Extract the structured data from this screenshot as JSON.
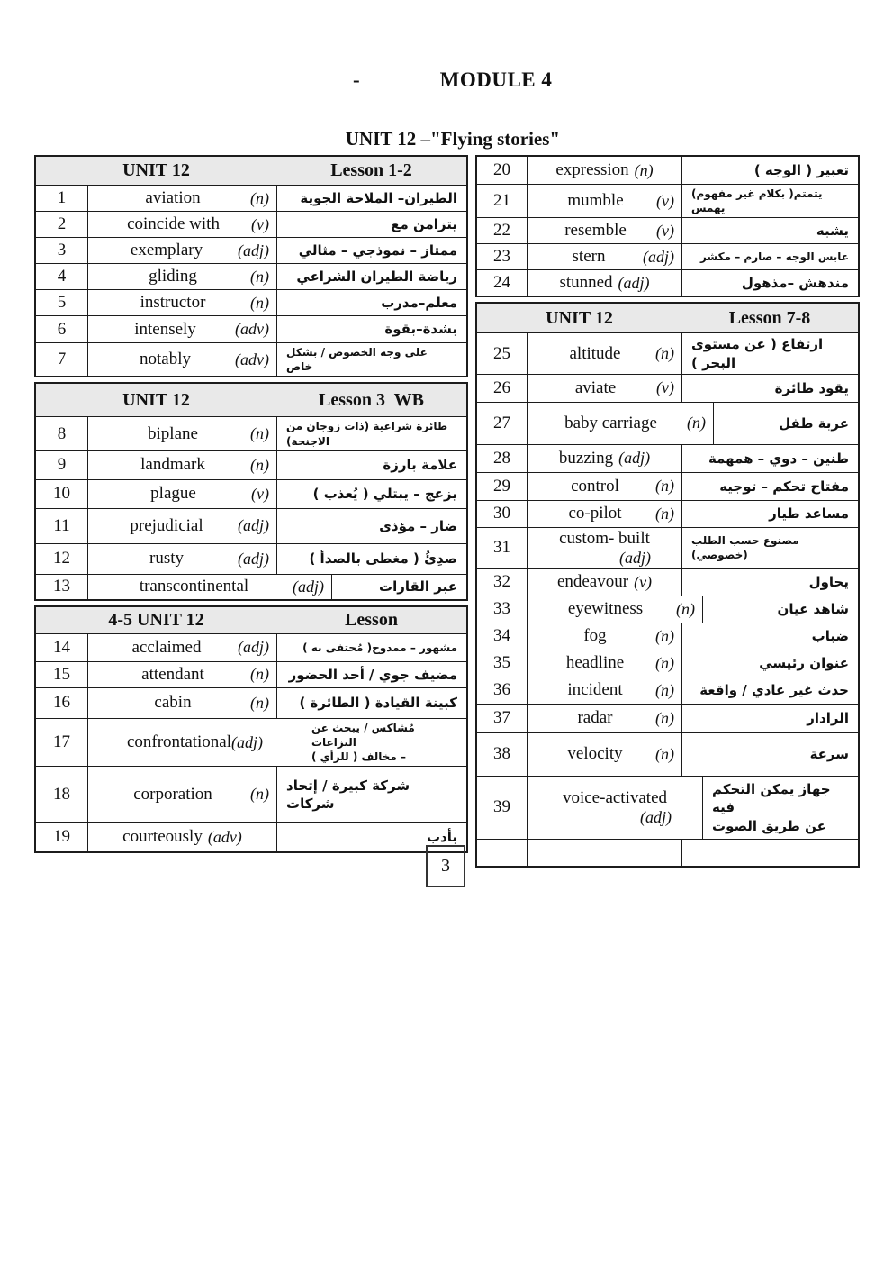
{
  "header": {
    "dash": "-",
    "module_title": "MODULE 4",
    "unit_title": "UNIT 12 –\"Flying stories\""
  },
  "footer": {
    "page_number": "3"
  },
  "left_table": {
    "sections": [
      {
        "unit": "UNIT 12",
        "lesson": "Lesson 1-2",
        "rows": [
          {
            "num": "1",
            "word": "aviation",
            "pos": "(n)",
            "ar": "الطيران– الملاحة الجوية"
          },
          {
            "num": "2",
            "word": "coincide with",
            "pos": "(v)",
            "ar": "يتزامن مع"
          },
          {
            "num": "3",
            "word": "exemplary",
            "pos": "(adj)",
            "ar": "ممتاز – نموذجي – مثالي"
          },
          {
            "num": "4",
            "word": "gliding",
            "pos": "(n)",
            "ar": "رياضة الطيران الشراعي"
          },
          {
            "num": "5",
            "word": "instructor",
            "pos": "(n)",
            "ar": "معلم–مدرب"
          },
          {
            "num": "6",
            "word": "intensely",
            "pos": "(adv)",
            "ar": "بشدة–بقوة"
          },
          {
            "num": "7",
            "word": "notably",
            "pos": "(adv)",
            "ar": "على وجه الخصوص / بشكل خاص",
            "ar_small": true
          }
        ]
      },
      {
        "unit": "UNIT 12",
        "lesson": "Lesson 3  WB",
        "rows": [
          {
            "num": "8",
            "word": "biplane",
            "pos": "(n)",
            "ar": "طائرة شراعية (ذات زوجان من الاجنحة)",
            "ar_small": true
          },
          {
            "num": "9",
            "word": "landmark",
            "pos": "(n)",
            "ar": "علامة بارزة"
          },
          {
            "num": "10",
            "word": "plague",
            "pos": "(v)",
            "ar": "يزعج – يبتلي ( يُعذب )"
          },
          {
            "num": "11",
            "word": "prejudicial",
            "pos": "(adj)",
            "ar": "ضار –  مؤذى"
          },
          {
            "num": "12",
            "word": "rusty",
            "pos": "(adj)",
            "ar": "صدِئُ ( مغطى بالصدأ )"
          },
          {
            "num": "13",
            "word": "transcontinental",
            "pos": "(adj)",
            "ar": "عبر القارات",
            "word_w": 271
          }
        ]
      },
      {
        "unit": "4-5 UNIT 12",
        "lesson": "Lesson",
        "rows": [
          {
            "num": "14",
            "word": "acclaimed",
            "pos": "(adj)",
            "ar": "مشهور – ممدوح( مُحتفى به )",
            "ar_small": true
          },
          {
            "num": "15",
            "word": "attendant",
            "pos": "(n)",
            "ar": "مضيف جوي / أحد الحضور"
          },
          {
            "num": "16",
            "word": "cabin",
            "pos": "(n)",
            "ar": "كبينة القيادة ( الطائرة )"
          },
          {
            "num": "17",
            "word": "confrontational",
            "pos": "(adj)",
            "ar": "مُشاكس / يبحث عن النزاعات\n– مخالف ( للرأي )",
            "ar_small": true,
            "word_w": 238,
            "pos_inline": true,
            "pos_gap": 0
          },
          {
            "num": "18",
            "word": "corporation",
            "pos": "(n)",
            "ar": "شركة كبيرة / إتحاد شركات"
          },
          {
            "num": "19",
            "word": "courteously",
            "pos": "(adv)",
            "ar": "بأدب",
            "ar_align": "right",
            "pos_inline": true
          }
        ]
      }
    ]
  },
  "right_table": {
    "sections": [
      {
        "rows": [
          {
            "num": "20",
            "word": "expression",
            "pos": "(n)",
            "ar": "تعبير ( الوجه )",
            "pos_inline": true
          },
          {
            "num": "21",
            "word": "mumble",
            "pos": "(v)",
            "ar": "يتمتم( بكلام غير مفهوم) يهمس",
            "ar_small": true
          },
          {
            "num": "22",
            "word": "resemble",
            "pos": "(v)",
            "ar": "يشبه"
          },
          {
            "num": "23",
            "word": "stern",
            "pos": "(adj)",
            "ar": "عابس الوجه – صارم – مكشر",
            "ar_small": true
          },
          {
            "num": "24",
            "word": "stunned",
            "pos": "(adj)",
            "ar": "مندهش –مذهول",
            "pos_inline": true
          }
        ]
      },
      {
        "unit": "UNIT 12",
        "lesson": "Lesson 7-8",
        "rows": [
          {
            "num": "25",
            "word": "altitude",
            "pos": "(n)",
            "ar": "ارتفاع ( عن مستوى البحر )"
          },
          {
            "num": "26",
            "word": "aviate",
            "pos": "(v)",
            "ar": "يقود طائرة"
          },
          {
            "num": "27",
            "word": "baby carriage",
            "pos": "(n)",
            "ar": "عربة طفل",
            "word_w": 207
          },
          {
            "num": "28",
            "word": "buzzing",
            "pos": "(adj)",
            "ar": "طنين – دوي – همهمة",
            "pos_inline": true
          },
          {
            "num": "29",
            "word": "control",
            "pos": "(n)",
            "ar": "مفتاح تحكم – توجيه"
          },
          {
            "num": "30",
            "word": "co-pilot",
            "pos": "(n)",
            "ar": "مساعد طيار"
          },
          {
            "num": "31",
            "word": "custom- built",
            "pos": "(adj)",
            "ar": "مصنوع حسب الطلب (خصوصي)",
            "ar_small": true,
            "pos_newline": true
          },
          {
            "num": "32",
            "word": "endeavour",
            "pos": "(v)",
            "ar": "يحاول",
            "pos_inline": true
          },
          {
            "num": "33",
            "word": "eyewitness",
            "pos": "(n)",
            "ar": "شاهد عيان",
            "word_w": 195
          },
          {
            "num": "34",
            "word": "fog",
            "pos": "(n)",
            "ar": "ضباب"
          },
          {
            "num": "35",
            "word": "headline",
            "pos": "(n)",
            "ar": "عنوان رئيسي"
          },
          {
            "num": "36",
            "word": "incident",
            "pos": "(n)",
            "ar": "حدث غير عادي / واقعة"
          },
          {
            "num": "37",
            "word": "radar",
            "pos": "(n)",
            "ar": "الرادار"
          },
          {
            "num": "38",
            "word": "velocity",
            "pos": "(n)",
            "ar": "سرعة"
          },
          {
            "num": "39",
            "word": "voice-activated",
            "pos": "(adj)",
            "ar": "جهاز يمكن التحكم فيه\nعن طريق الصوت",
            "word_w": 195,
            "pos_newline": true
          },
          {
            "num": "",
            "word": "",
            "pos": "",
            "ar": "",
            "empty": true
          }
        ]
      }
    ]
  }
}
